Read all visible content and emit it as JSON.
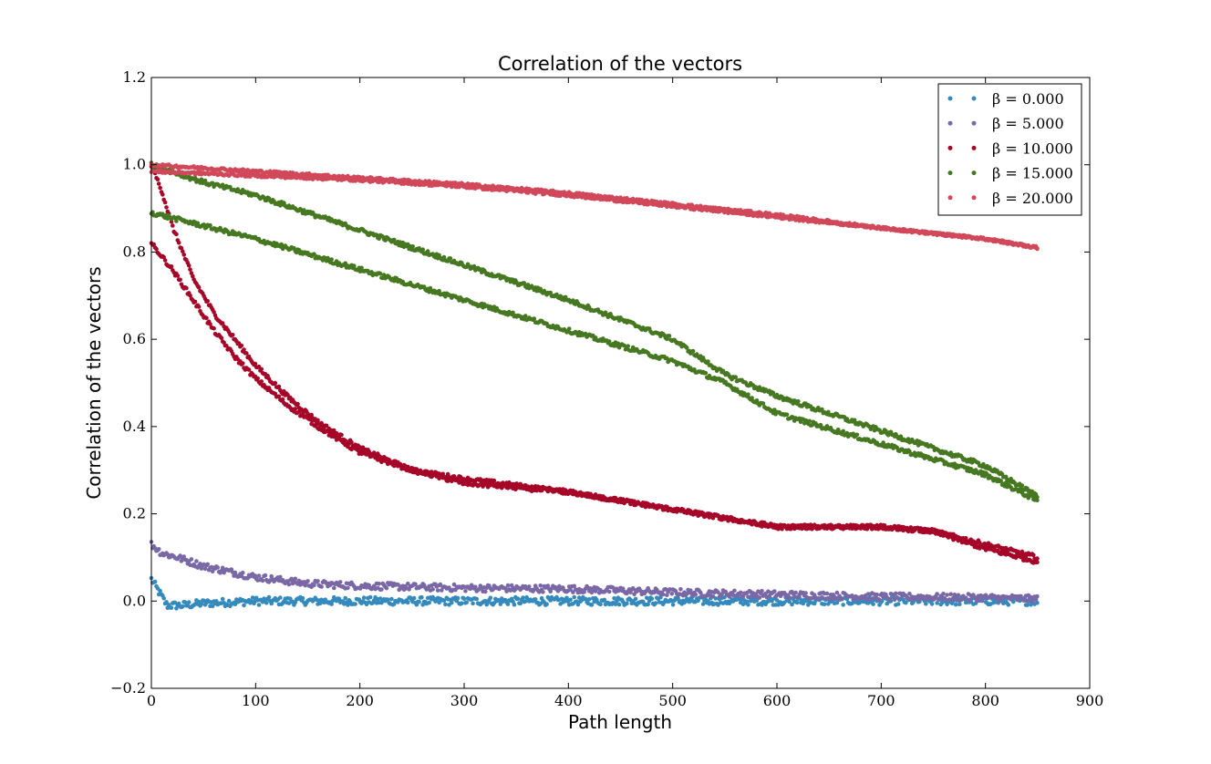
{
  "chart_data": {
    "type": "scatter",
    "title": "Correlation of the vectors",
    "xlabel": "Path length",
    "ylabel": "Correlation of the vectors",
    "xlim": [
      0,
      900
    ],
    "ylim": [
      -0.2,
      1.2
    ],
    "xticks": [
      0,
      100,
      200,
      300,
      400,
      500,
      600,
      700,
      800,
      900
    ],
    "xtick_labels": [
      "0",
      "100",
      "200",
      "300",
      "400",
      "500",
      "600",
      "700",
      "800",
      "900"
    ],
    "yticks": [
      -0.2,
      0.0,
      0.2,
      0.4,
      0.6,
      0.8,
      1.0,
      1.2
    ],
    "ytick_labels": [
      "−0.2",
      "0.0",
      "0.2",
      "0.4",
      "0.6",
      "0.8",
      "1.0",
      "1.2"
    ],
    "grid": false,
    "legend_position": "top-right",
    "series": [
      {
        "name": "β = 0.000",
        "color": "#348ABD",
        "points": [
          [
            0,
            0.05
          ],
          [
            5,
            0.03
          ],
          [
            15,
            -0.01
          ],
          [
            30,
            -0.01
          ],
          [
            50,
            -0.005
          ],
          [
            100,
            0.0
          ],
          [
            200,
            0.0
          ],
          [
            300,
            0.0
          ],
          [
            400,
            0.0
          ],
          [
            500,
            0.0
          ],
          [
            600,
            0.0
          ],
          [
            700,
            0.0
          ],
          [
            800,
            0.0
          ],
          [
            850,
            0.0
          ]
        ],
        "noise": 0.009,
        "curves": 1
      },
      {
        "name": "β = 5.000",
        "color": "#7A68A6",
        "points": [
          [
            0,
            0.13
          ],
          [
            10,
            0.11
          ],
          [
            25,
            0.1
          ],
          [
            50,
            0.08
          ],
          [
            100,
            0.055
          ],
          [
            150,
            0.04
          ],
          [
            200,
            0.035
          ],
          [
            300,
            0.03
          ],
          [
            400,
            0.028
          ],
          [
            500,
            0.02
          ],
          [
            600,
            0.015
          ],
          [
            700,
            0.01
          ],
          [
            800,
            0.008
          ],
          [
            850,
            0.005
          ]
        ],
        "noise": 0.008,
        "curves": 1
      },
      {
        "name": "β = 10.000",
        "color": "#A60628",
        "curves": 2,
        "noise": 0.005,
        "points": [
          [
            0,
            1.0
          ],
          [
            10,
            0.94
          ],
          [
            20,
            0.86
          ],
          [
            40,
            0.74
          ],
          [
            60,
            0.66
          ],
          [
            80,
            0.6
          ],
          [
            100,
            0.54
          ],
          [
            130,
            0.47
          ],
          [
            160,
            0.41
          ],
          [
            200,
            0.35
          ],
          [
            250,
            0.3
          ],
          [
            300,
            0.28
          ],
          [
            400,
            0.25
          ],
          [
            500,
            0.21
          ],
          [
            600,
            0.17
          ],
          [
            700,
            0.17
          ],
          [
            750,
            0.16
          ],
          [
            800,
            0.13
          ],
          [
            850,
            0.1
          ]
        ],
        "points2": [
          [
            0,
            0.82
          ],
          [
            10,
            0.79
          ],
          [
            20,
            0.76
          ],
          [
            40,
            0.69
          ],
          [
            60,
            0.62
          ],
          [
            80,
            0.56
          ],
          [
            100,
            0.51
          ],
          [
            130,
            0.45
          ],
          [
            160,
            0.4
          ],
          [
            200,
            0.34
          ],
          [
            250,
            0.3
          ],
          [
            300,
            0.27
          ],
          [
            400,
            0.25
          ],
          [
            500,
            0.21
          ],
          [
            600,
            0.17
          ],
          [
            700,
            0.17
          ],
          [
            750,
            0.16
          ],
          [
            800,
            0.12
          ],
          [
            850,
            0.09
          ]
        ]
      },
      {
        "name": "β = 15.000",
        "color": "#467821",
        "curves": 2,
        "noise": 0.005,
        "points": [
          [
            0,
            1.0
          ],
          [
            50,
            0.96
          ],
          [
            100,
            0.93
          ],
          [
            200,
            0.85
          ],
          [
            300,
            0.77
          ],
          [
            400,
            0.69
          ],
          [
            500,
            0.6
          ],
          [
            550,
            0.52
          ],
          [
            600,
            0.47
          ],
          [
            700,
            0.39
          ],
          [
            800,
            0.31
          ],
          [
            850,
            0.24
          ]
        ],
        "points2": [
          [
            0,
            0.89
          ],
          [
            50,
            0.86
          ],
          [
            100,
            0.83
          ],
          [
            200,
            0.76
          ],
          [
            300,
            0.69
          ],
          [
            400,
            0.62
          ],
          [
            500,
            0.55
          ],
          [
            550,
            0.5
          ],
          [
            600,
            0.43
          ],
          [
            700,
            0.36
          ],
          [
            800,
            0.29
          ],
          [
            850,
            0.23
          ]
        ]
      },
      {
        "name": "β = 20.000",
        "color": "#D0485A",
        "curves": 2,
        "noise": 0.003,
        "points": [
          [
            0,
            1.0
          ],
          [
            100,
            0.985
          ],
          [
            200,
            0.97
          ],
          [
            300,
            0.955
          ],
          [
            400,
            0.935
          ],
          [
            500,
            0.91
          ],
          [
            600,
            0.885
          ],
          [
            700,
            0.855
          ],
          [
            800,
            0.83
          ],
          [
            850,
            0.81
          ]
        ],
        "points2": [
          [
            0,
            0.985
          ],
          [
            100,
            0.975
          ],
          [
            200,
            0.965
          ],
          [
            300,
            0.95
          ],
          [
            400,
            0.93
          ],
          [
            500,
            0.905
          ],
          [
            600,
            0.88
          ],
          [
            700,
            0.855
          ],
          [
            800,
            0.83
          ],
          [
            850,
            0.81
          ]
        ]
      }
    ]
  }
}
